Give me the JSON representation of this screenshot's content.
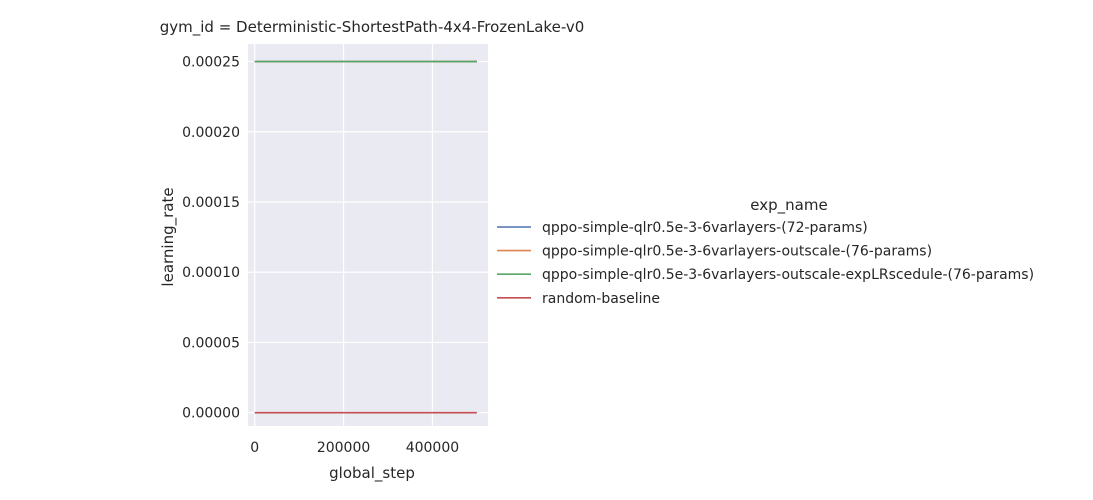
{
  "chart_data": {
    "type": "line",
    "title": "gym_id = Deterministic-ShortestPath-4x4-FrozenLake-v0",
    "xlabel": "global_step",
    "ylabel": "learning_rate",
    "xlim": [
      -15000,
      525000
    ],
    "ylim": [
      -9.5e-06,
      0.0002625
    ],
    "xticks": [
      0,
      200000,
      400000
    ],
    "xtick_labels": [
      "0",
      "200000",
      "400000"
    ],
    "yticks": [
      0,
      5e-05,
      0.0001,
      0.00015,
      0.0002,
      0.00025
    ],
    "ytick_labels": [
      "0.00000",
      "0.00005",
      "0.00010",
      "0.00015",
      "0.00020",
      "0.00025"
    ],
    "grid": true,
    "background": "#eaeaf2",
    "legend": {
      "title": "exp_name",
      "placement": "right"
    },
    "series": [
      {
        "name": "qppo-simple-qlr0.5e-3-6varlayers-(72-params)",
        "color": "#4c72b0",
        "x": [
          0,
          500000
        ],
        "y": [
          0.00025,
          0.00025
        ]
      },
      {
        "name": "qppo-simple-qlr0.5e-3-6varlayers-outscale-(76-params)",
        "color": "#dd8452",
        "x": [
          0,
          500000
        ],
        "y": [
          0.00025,
          0.00025
        ]
      },
      {
        "name": "qppo-simple-qlr0.5e-3-6varlayers-outscale-expLRscedule-(76-params)",
        "color": "#55a868",
        "x": [
          0,
          500000
        ],
        "y": [
          0.00025,
          0.00025
        ]
      },
      {
        "name": "random-baseline",
        "color": "#c44e52",
        "x": [
          0,
          500000
        ],
        "y": [
          0,
          0
        ]
      }
    ]
  }
}
